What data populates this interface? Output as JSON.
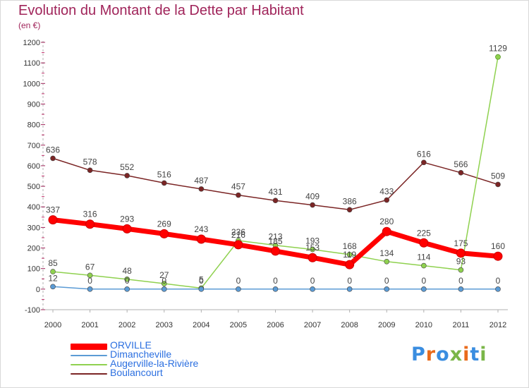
{
  "title": "Evolution du Montant de la Dette par Habitant",
  "subtitle": "(en €)",
  "logo": {
    "text": "Proxiti",
    "colors": [
      "#3a8de0",
      "#e96b1c",
      "#3a8de0",
      "#7ab648",
      "#e96b1c",
      "#3a8de0",
      "#7ab648"
    ]
  },
  "chart_data": {
    "type": "line",
    "x": [
      2000,
      2001,
      2002,
      2003,
      2004,
      2005,
      2006,
      2007,
      2008,
      2009,
      2010,
      2011,
      2012
    ],
    "ylim": [
      -100,
      1200
    ],
    "yticks": [
      -100,
      0,
      100,
      200,
      300,
      400,
      500,
      600,
      700,
      800,
      900,
      1000,
      1100,
      1200
    ],
    "grid": false,
    "legend_position": "bottom-left",
    "series": [
      {
        "name": "ORVILLE",
        "color": "#ff0000",
        "values": [
          337,
          316,
          293,
          269,
          243,
          216,
          185,
          153,
          119,
          280,
          225,
          175,
          160
        ],
        "labels": [
          "337",
          "316",
          "293",
          "269",
          "243",
          "216",
          "185",
          "153",
          "119",
          "280",
          "225",
          "175",
          "160"
        ]
      },
      {
        "name": "Dimancheville",
        "color": "#5b9bd5",
        "values": [
          12,
          0,
          0,
          0,
          0,
          0,
          0,
          0,
          0,
          0,
          0,
          0,
          0
        ],
        "labels": [
          "12",
          "0",
          "0",
          "0",
          "0",
          "0",
          "0",
          "0",
          "0",
          "0",
          "0",
          "0",
          "0"
        ]
      },
      {
        "name": "Augerville-la-Rivière",
        "color": "#8fd14f",
        "values": [
          85,
          67,
          48,
          27,
          5,
          236,
          213,
          193,
          168,
          134,
          114,
          93,
          1129
        ],
        "labels": [
          "85",
          "67",
          "48",
          "27",
          "5",
          "236",
          "213",
          "193",
          "168",
          "134",
          "114",
          "93",
          "1129"
        ]
      },
      {
        "name": "Boulancourt",
        "color": "#7b2525",
        "values": [
          636,
          578,
          552,
          516,
          487,
          457,
          431,
          409,
          386,
          433,
          616,
          566,
          509
        ],
        "labels": [
          "636",
          "578",
          "552",
          "516",
          "487",
          "457",
          "431",
          "409",
          "386",
          "433",
          "616",
          "566",
          "509"
        ]
      }
    ]
  }
}
